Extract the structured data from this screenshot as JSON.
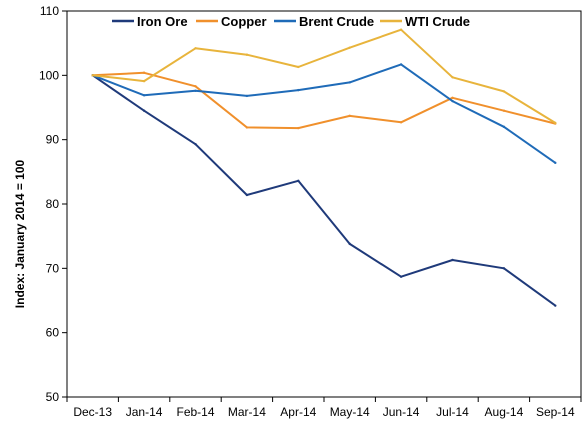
{
  "chart_data": {
    "type": "line",
    "title": "",
    "xlabel": "",
    "ylabel": "Index: January 2014 = 100",
    "ylim": [
      50,
      110
    ],
    "yticks": [
      50,
      60,
      70,
      80,
      90,
      100,
      110
    ],
    "grid": false,
    "legend_position": "top",
    "categories": [
      "Dec-13",
      "Jan-14",
      "Feb-14",
      "Mar-14",
      "Apr-14",
      "May-14",
      "Jun-14",
      "Jul-14",
      "Aug-14",
      "Sep-14"
    ],
    "series": [
      {
        "name": "Iron Ore",
        "color": "#1f3a7a",
        "values": [
          100,
          94.5,
          89.3,
          81.4,
          83.6,
          73.8,
          68.7,
          71.3,
          70.0,
          64.2
        ]
      },
      {
        "name": "Copper",
        "color": "#f0902c",
        "values": [
          100,
          100.4,
          98.3,
          91.9,
          91.8,
          93.7,
          92.7,
          96.5,
          94.5,
          92.5
        ]
      },
      {
        "name": "Brent Crude",
        "color": "#1f6bb8",
        "values": [
          100,
          96.9,
          97.6,
          96.8,
          97.7,
          98.9,
          101.7,
          96.0,
          92.0,
          86.4
        ]
      },
      {
        "name": "WTI Crude",
        "color": "#e8b43c",
        "values": [
          100,
          99.1,
          104.2,
          103.2,
          101.3,
          104.3,
          107.1,
          99.7,
          97.5,
          92.6
        ]
      }
    ]
  }
}
